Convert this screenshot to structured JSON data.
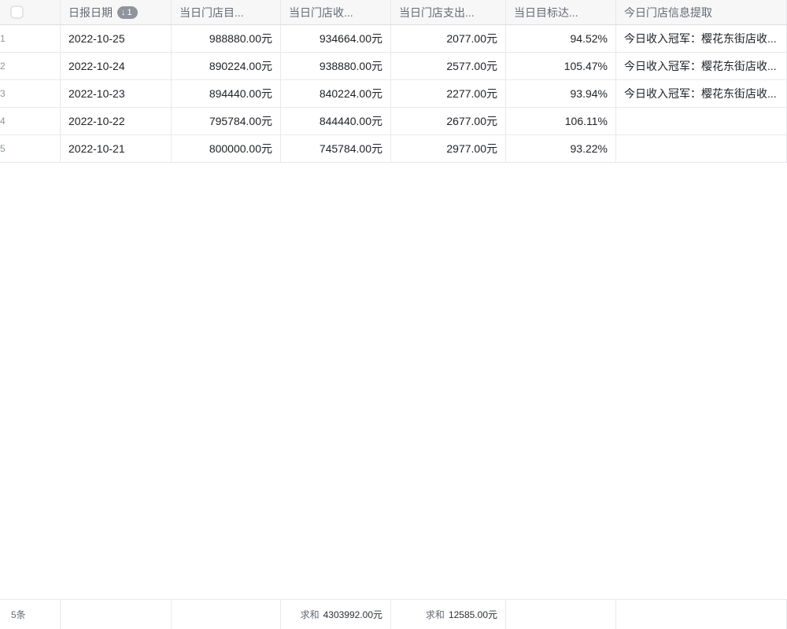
{
  "header": {
    "date_label": "日报日期",
    "sort_icon": "↓",
    "sort_badge": "1",
    "col_target": "当日门店目...",
    "col_income": "当日门店收...",
    "col_expense": "当日门店支出...",
    "col_rate": "当日目标达...",
    "col_info": "今日门店信息提取"
  },
  "rows": [
    {
      "num": "1",
      "date": "2022-10-25",
      "target": "988880.00元",
      "income": "934664.00元",
      "expense": "2077.00元",
      "rate": "94.52%",
      "info": "今日收入冠军：樱花东街店收..."
    },
    {
      "num": "2",
      "date": "2022-10-24",
      "target": "890224.00元",
      "income": "938880.00元",
      "expense": "2577.00元",
      "rate": "105.47%",
      "info": "今日收入冠军：樱花东街店收..."
    },
    {
      "num": "3",
      "date": "2022-10-23",
      "target": "894440.00元",
      "income": "840224.00元",
      "expense": "2277.00元",
      "rate": "93.94%",
      "info": "今日收入冠军：樱花东街店收..."
    },
    {
      "num": "4",
      "date": "2022-10-22",
      "target": "795784.00元",
      "income": "844440.00元",
      "expense": "2677.00元",
      "rate": "106.11%",
      "info": ""
    },
    {
      "num": "5",
      "date": "2022-10-21",
      "target": "800000.00元",
      "income": "745784.00元",
      "expense": "2977.00元",
      "rate": "93.22%",
      "info": ""
    }
  ],
  "footer": {
    "record_count": "5条",
    "income_sum_label": "求和",
    "income_sum_value": "4303992.00元",
    "expense_sum_label": "求和",
    "expense_sum_value": "12585.00元"
  },
  "colors": {
    "header_bg": "#f7f7f8",
    "grid_border": "#e7e9ec",
    "header_text": "#646a73",
    "cell_text": "#202328",
    "row_number_text": "#8f959e",
    "sort_badge_bg": "#8f949d"
  }
}
